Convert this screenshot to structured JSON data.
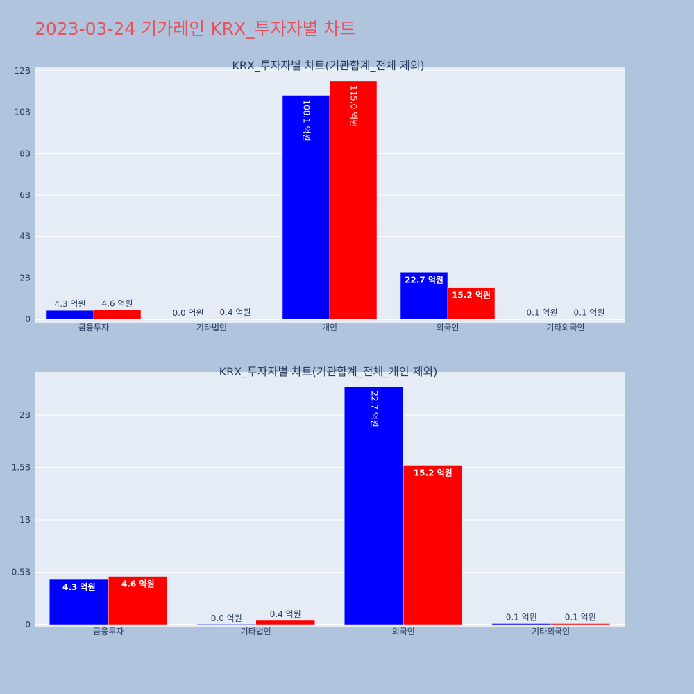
{
  "title": "2023-03-24 기가레인 KRX_투자자별 차트",
  "colors": {
    "buy": "#0000ff",
    "sell": "#ff0000",
    "plot_bg": "#e5ecf6",
    "paper_bg": "#b0c4de",
    "title": "#e8535f"
  },
  "chart_data": [
    {
      "type": "bar",
      "title": "KRX_투자자별 차트(기관합계_전체 제외)",
      "categories": [
        "금융투자",
        "기타법인",
        "개인",
        "외국인",
        "기타외국인"
      ],
      "ylim": [
        0,
        12000000000
      ],
      "y_ticks": [
        0,
        2000000000,
        4000000000,
        6000000000,
        8000000000,
        10000000000,
        12000000000
      ],
      "y_tick_labels": [
        "0",
        "2B",
        "4B",
        "6B",
        "8B",
        "10B",
        "12B"
      ],
      "series": [
        {
          "color": "#0000ff",
          "values": [
            430000000,
            0,
            10810000000,
            2270000000,
            10000000
          ],
          "labels": [
            "4.3 억원",
            "0.0 억원",
            "108.1 억원",
            "22.7 억원",
            "0.1 억원"
          ]
        },
        {
          "color": "#ff0000",
          "values": [
            460000000,
            40000000,
            11500000000,
            1520000000,
            10000000
          ],
          "labels": [
            "4.6 억원",
            "0.4 억원",
            "115.0 억원",
            "15.2 억원",
            "0.1 억원"
          ]
        }
      ],
      "grid": true
    },
    {
      "type": "bar",
      "title": "KRX_투자자별 차트(기관합계_전체_개인 제외)",
      "categories": [
        "금융투자",
        "기타법인",
        "외국인",
        "기타외국인"
      ],
      "ylim": [
        0,
        2400000000
      ],
      "y_ticks": [
        0,
        500000000,
        1000000000,
        1500000000,
        2000000000
      ],
      "y_tick_labels": [
        "0",
        "0.5B",
        "1B",
        "1.5B",
        "2B"
      ],
      "series": [
        {
          "color": "#0000ff",
          "values": [
            430000000,
            0,
            2270000000,
            10000000
          ],
          "labels": [
            "4.3 억원",
            "0.0 억원",
            "22.7 억원",
            "0.1 억원"
          ]
        },
        {
          "color": "#ff0000",
          "values": [
            460000000,
            40000000,
            1520000000,
            10000000
          ],
          "labels": [
            "4.6 억원",
            "0.4 억원",
            "15.2 억원",
            "0.1 억원"
          ]
        }
      ],
      "grid": true
    }
  ]
}
